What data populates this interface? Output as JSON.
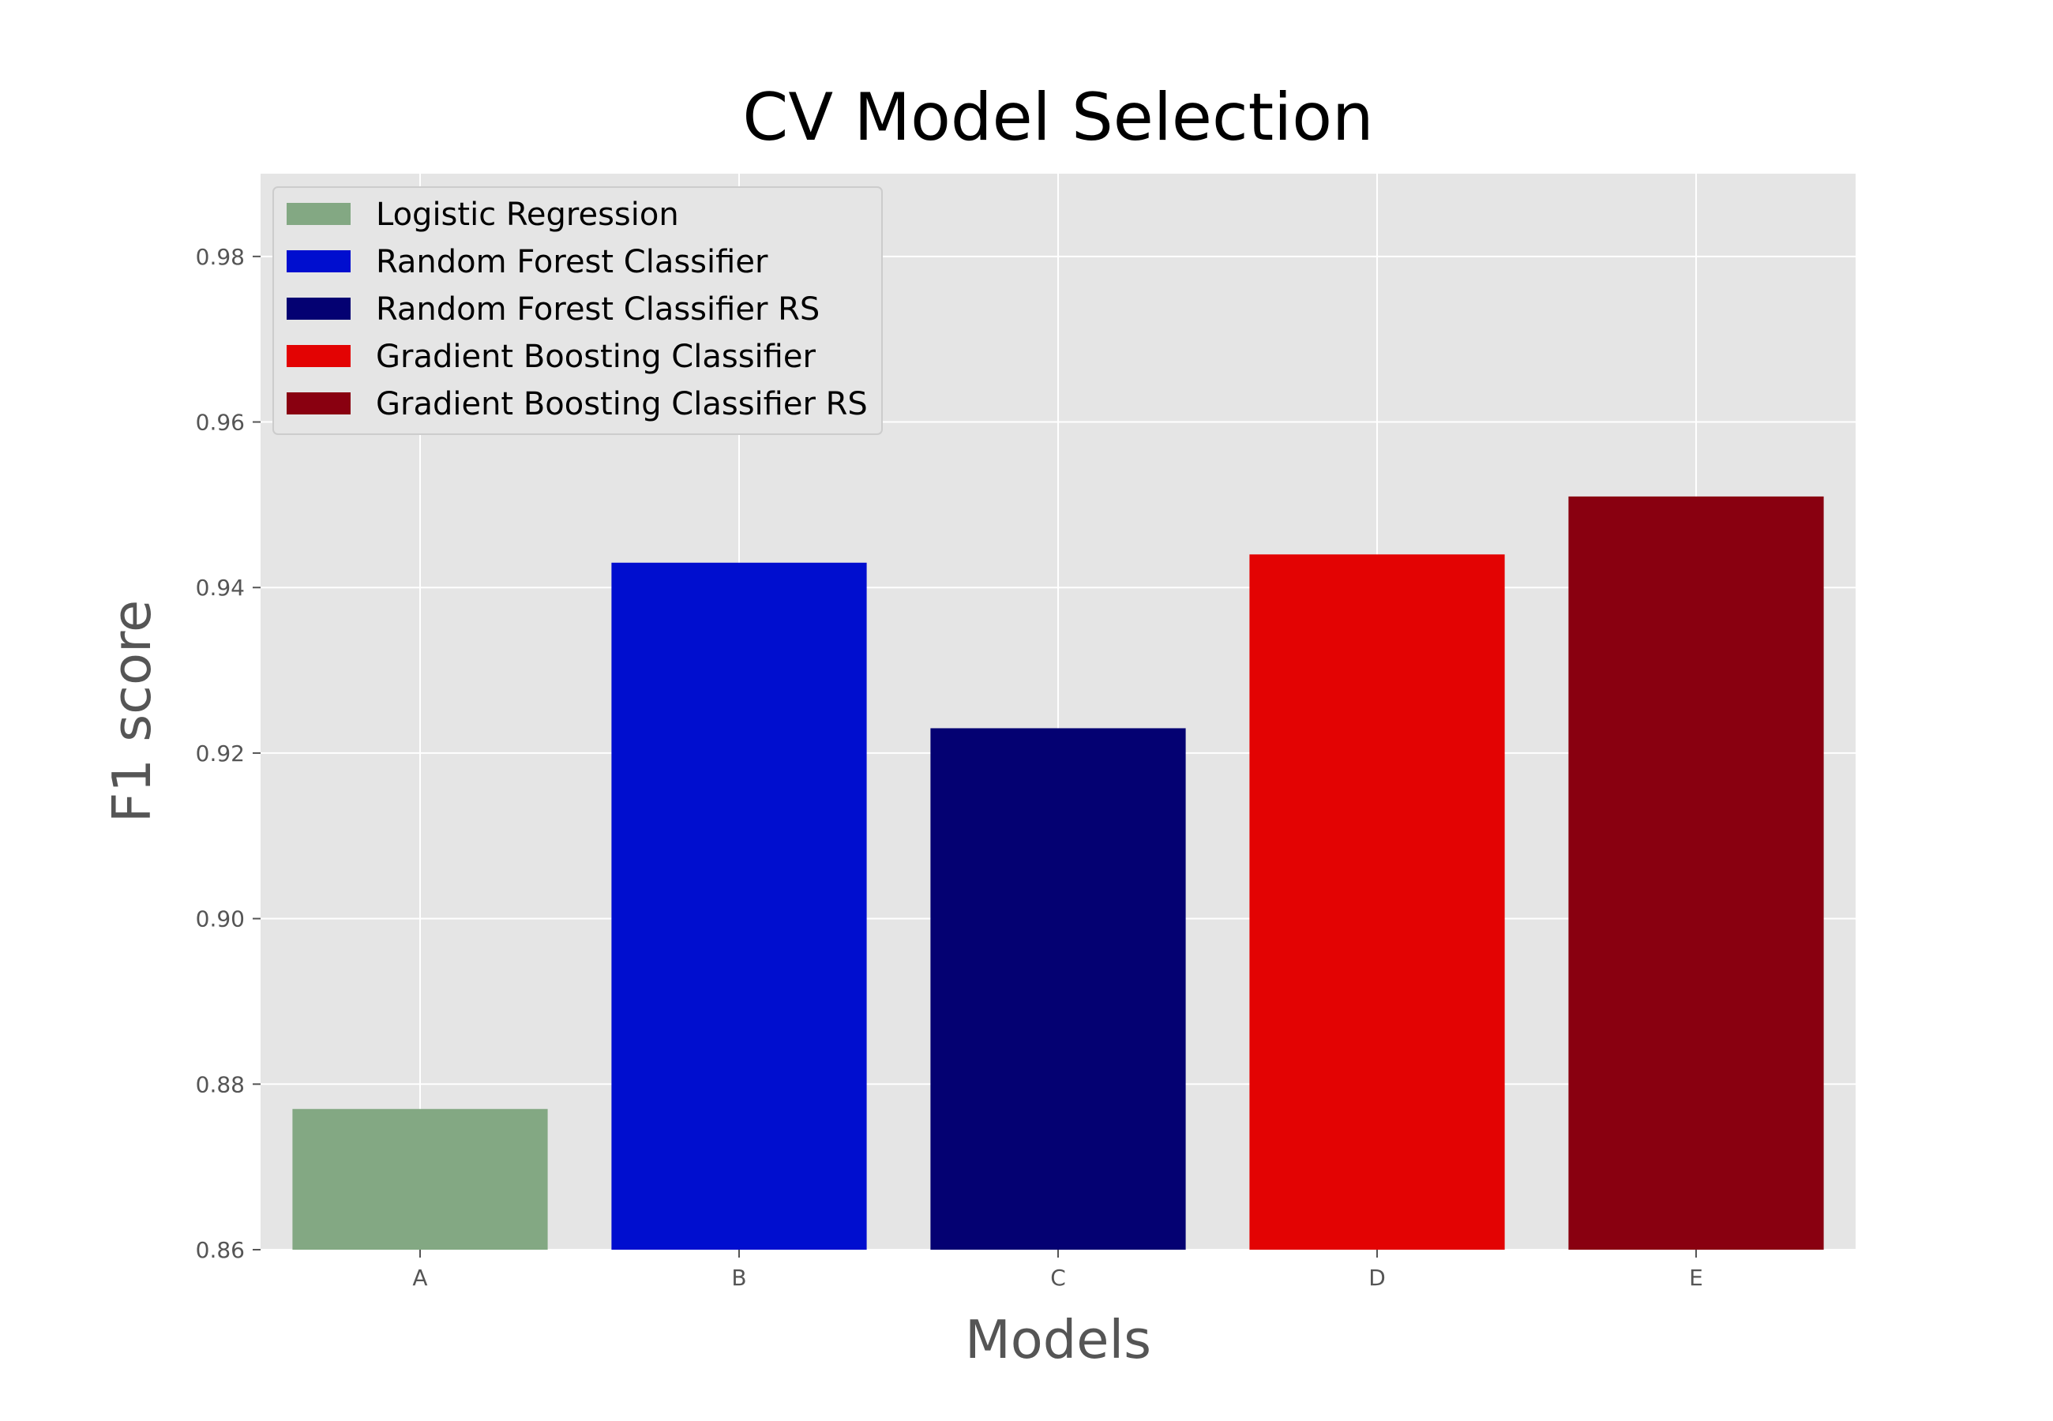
{
  "chart_data": {
    "type": "bar",
    "title": "CV Model Selection",
    "xlabel": "Models",
    "ylabel": "F1 score",
    "categories": [
      "A",
      "B",
      "C",
      "D",
      "E"
    ],
    "values": [
      0.877,
      0.943,
      0.923,
      0.944,
      0.951
    ],
    "colors": [
      "#83a883",
      "#000ecf",
      "#040172",
      "#e30303",
      "#890010"
    ],
    "legend": [
      "Logistic Regression",
      "Random Forest Classifier",
      "Random Forest Classifier RS",
      "Gradient Boosting Classifier",
      "Gradient Boosting Classifier RS"
    ],
    "legend_position": "upper-left",
    "ylim": [
      0.86,
      0.99
    ],
    "yticks": [
      "0.86",
      "0.88",
      "0.90",
      "0.92",
      "0.94",
      "0.96",
      "0.98"
    ],
    "ytick_values": [
      0.86,
      0.88,
      0.9,
      0.92,
      0.94,
      0.96,
      0.98
    ],
    "grid": true,
    "style": "ggplot",
    "background": "#e5e5e5"
  }
}
